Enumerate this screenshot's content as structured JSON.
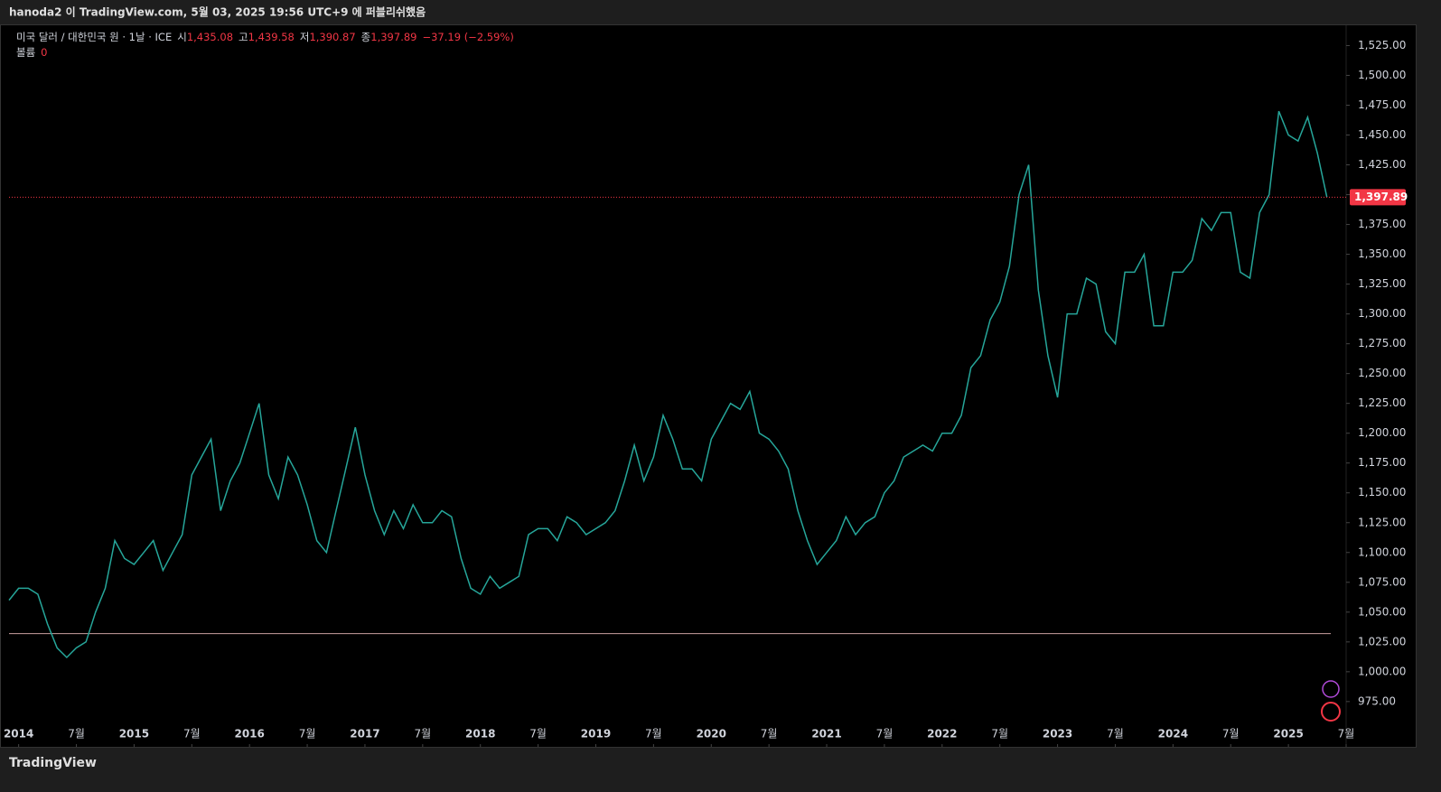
{
  "header": {
    "title": "hanoda2 이 TradingView.com, 5월 03, 2025 19:56 UTC+9 에 퍼블리쉬했음"
  },
  "legend": {
    "symbol": "미국 달러 / 대한민국 원 · 1날 · ICE",
    "open_label": "시",
    "open": "1,435.08",
    "high_label": "고",
    "high": "1,439.58",
    "low_label": "저",
    "low": "1,390.87",
    "close_label": "종",
    "close": "1,397.89",
    "change": "−37.19 (−2.59%)",
    "volume_label": "볼륨",
    "volume": "0"
  },
  "footer": {
    "brand": "TradingView"
  },
  "chart_data": {
    "type": "line",
    "color": "#26a69a",
    "x": [
      "2013-12",
      "2014-01",
      "2014-02",
      "2014-03",
      "2014-04",
      "2014-05",
      "2014-06",
      "2014-07",
      "2014-08",
      "2014-09",
      "2014-10",
      "2014-11",
      "2014-12",
      "2015-01",
      "2015-02",
      "2015-03",
      "2015-04",
      "2015-05",
      "2015-06",
      "2015-07",
      "2015-08",
      "2015-09",
      "2015-10",
      "2015-11",
      "2015-12",
      "2016-01",
      "2016-02",
      "2016-03",
      "2016-04",
      "2016-05",
      "2016-06",
      "2016-07",
      "2016-08",
      "2016-09",
      "2016-10",
      "2016-11",
      "2016-12",
      "2017-01",
      "2017-02",
      "2017-03",
      "2017-04",
      "2017-05",
      "2017-06",
      "2017-07",
      "2017-08",
      "2017-09",
      "2017-10",
      "2017-11",
      "2017-12",
      "2018-01",
      "2018-02",
      "2018-03",
      "2018-04",
      "2018-05",
      "2018-06",
      "2018-07",
      "2018-08",
      "2018-09",
      "2018-10",
      "2018-11",
      "2018-12",
      "2019-01",
      "2019-02",
      "2019-03",
      "2019-04",
      "2019-05",
      "2019-06",
      "2019-07",
      "2019-08",
      "2019-09",
      "2019-10",
      "2019-11",
      "2019-12",
      "2020-01",
      "2020-02",
      "2020-03",
      "2020-04",
      "2020-05",
      "2020-06",
      "2020-07",
      "2020-08",
      "2020-09",
      "2020-10",
      "2020-11",
      "2020-12",
      "2021-01",
      "2021-02",
      "2021-03",
      "2021-04",
      "2021-05",
      "2021-06",
      "2021-07",
      "2021-08",
      "2021-09",
      "2021-10",
      "2021-11",
      "2021-12",
      "2022-01",
      "2022-02",
      "2022-03",
      "2022-04",
      "2022-05",
      "2022-06",
      "2022-07",
      "2022-08",
      "2022-09",
      "2022-10",
      "2022-11",
      "2022-12",
      "2023-01",
      "2023-02",
      "2023-03",
      "2023-04",
      "2023-05",
      "2023-06",
      "2023-07",
      "2023-08",
      "2023-09",
      "2023-10",
      "2023-11",
      "2023-12",
      "2024-01",
      "2024-02",
      "2024-03",
      "2024-04",
      "2024-05",
      "2024-06",
      "2024-07",
      "2024-08",
      "2024-09",
      "2024-10",
      "2024-11",
      "2024-12",
      "2025-01",
      "2025-02",
      "2025-03",
      "2025-04",
      "2025-05"
    ],
    "values": [
      1060,
      1070,
      1070,
      1065,
      1040,
      1020,
      1012,
      1020,
      1025,
      1050,
      1070,
      1110,
      1095,
      1090,
      1100,
      1110,
      1085,
      1100,
      1115,
      1165,
      1180,
      1195,
      1135,
      1160,
      1175,
      1200,
      1225,
      1165,
      1145,
      1180,
      1165,
      1140,
      1110,
      1100,
      1135,
      1170,
      1205,
      1165,
      1135,
      1115,
      1135,
      1120,
      1140,
      1125,
      1125,
      1135,
      1130,
      1095,
      1070,
      1065,
      1080,
      1070,
      1075,
      1080,
      1115,
      1120,
      1120,
      1110,
      1130,
      1125,
      1115,
      1120,
      1125,
      1135,
      1160,
      1190,
      1160,
      1180,
      1215,
      1195,
      1170,
      1170,
      1160,
      1195,
      1210,
      1225,
      1220,
      1235,
      1200,
      1195,
      1185,
      1170,
      1135,
      1110,
      1090,
      1100,
      1110,
      1130,
      1115,
      1125,
      1130,
      1150,
      1160,
      1180,
      1185,
      1190,
      1185,
      1200,
      1200,
      1215,
      1255,
      1265,
      1295,
      1310,
      1340,
      1400,
      1425,
      1320,
      1265,
      1230,
      1300,
      1300,
      1330,
      1325,
      1285,
      1275,
      1335,
      1335,
      1350,
      1290,
      1290,
      1335,
      1335,
      1345,
      1380,
      1370,
      1385,
      1385,
      1335,
      1330,
      1385,
      1400,
      1470,
      1450,
      1445,
      1465,
      1435,
      1397.89
    ],
    "xlim": [
      "2013-12",
      "2025-07"
    ],
    "xticks": [
      {
        "value": "2014-01",
        "label": "2014"
      },
      {
        "value": "2014-07",
        "label": "7월"
      },
      {
        "value": "2015-01",
        "label": "2015"
      },
      {
        "value": "2015-07",
        "label": "7월"
      },
      {
        "value": "2016-01",
        "label": "2016"
      },
      {
        "value": "2016-07",
        "label": "7월"
      },
      {
        "value": "2017-01",
        "label": "2017"
      },
      {
        "value": "2017-07",
        "label": "7월"
      },
      {
        "value": "2018-01",
        "label": "2018"
      },
      {
        "value": "2018-07",
        "label": "7월"
      },
      {
        "value": "2019-01",
        "label": "2019"
      },
      {
        "value": "2019-07",
        "label": "7월"
      },
      {
        "value": "2020-01",
        "label": "2020"
      },
      {
        "value": "2020-07",
        "label": "7월"
      },
      {
        "value": "2021-01",
        "label": "2021"
      },
      {
        "value": "2021-07",
        "label": "7월"
      },
      {
        "value": "2022-01",
        "label": "2022"
      },
      {
        "value": "2022-07",
        "label": "7월"
      },
      {
        "value": "2023-01",
        "label": "2023"
      },
      {
        "value": "2023-07",
        "label": "7월"
      },
      {
        "value": "2024-01",
        "label": "2024"
      },
      {
        "value": "2024-07",
        "label": "7월"
      },
      {
        "value": "2025-01",
        "label": "2025"
      },
      {
        "value": "2025-07",
        "label": "7월"
      }
    ],
    "ylim": [
      959,
      1542
    ],
    "yticks": [
      {
        "value": 975,
        "label": "975.00"
      },
      {
        "value": 1000,
        "label": "1,000.00"
      },
      {
        "value": 1025,
        "label": "1,025.00"
      },
      {
        "value": 1050,
        "label": "1,050.00"
      },
      {
        "value": 1075,
        "label": "1,075.00"
      },
      {
        "value": 1100,
        "label": "1,100.00"
      },
      {
        "value": 1125,
        "label": "1,125.00"
      },
      {
        "value": 1150,
        "label": "1,150.00"
      },
      {
        "value": 1175,
        "label": "1,175.00"
      },
      {
        "value": 1200,
        "label": "1,200.00"
      },
      {
        "value": 1225,
        "label": "1,225.00"
      },
      {
        "value": 1250,
        "label": "1,250.00"
      },
      {
        "value": 1275,
        "label": "1,275.00"
      },
      {
        "value": 1300,
        "label": "1,300.00"
      },
      {
        "value": 1325,
        "label": "1,325.00"
      },
      {
        "value": 1350,
        "label": "1,350.00"
      },
      {
        "value": 1375,
        "label": "1,375.00"
      },
      {
        "value": 1400,
        "label": "1,400.00"
      },
      {
        "value": 1425,
        "label": "1,425.00"
      },
      {
        "value": 1450,
        "label": "1,450.00"
      },
      {
        "value": 1475,
        "label": "1,475.00"
      },
      {
        "value": 1500,
        "label": "1,500.00"
      },
      {
        "value": 1525,
        "label": "1,525.00"
      }
    ],
    "last_price": {
      "value": 1397.89,
      "label": "1,397.89",
      "color": "#f23645"
    },
    "horizontal_line": 1032
  }
}
